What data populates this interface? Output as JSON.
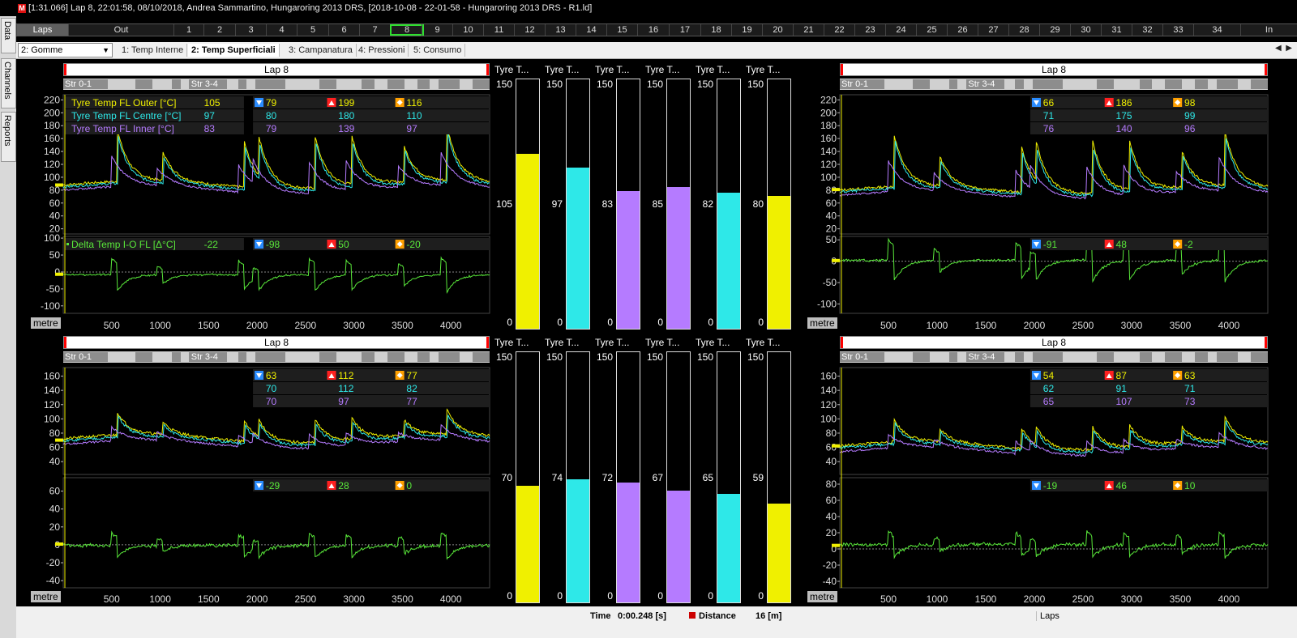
{
  "window_title": "[1:31.066] Lap 8, 22:01:58, 08/10/2018, Andrea Sammartino, Hungaroring 2013 DRS,  [2018-10-08 - 22-01-58 - Hungaroring 2013 DRS - R1.ld]",
  "side_tabs": [
    "Data",
    "Channels",
    "Reports"
  ],
  "laps_bar": {
    "items": [
      "Laps",
      "Out",
      "1",
      "2",
      "3",
      "4",
      "5",
      "6",
      "7",
      "8",
      "9",
      "10",
      "11",
      "12",
      "13",
      "14",
      "15",
      "16",
      "17",
      "18",
      "19",
      "20",
      "21",
      "22",
      "23",
      "24",
      "25",
      "26",
      "27",
      "28",
      "29",
      "30",
      "31",
      "32",
      "33",
      "34",
      "In"
    ],
    "selected": "8"
  },
  "workbook_select": "2: Gomme",
  "tabs": [
    "1: Temp Interne",
    "2: Temp Superficiali",
    "3: Campanatura",
    "4: Pressioni",
    "5: Consumo"
  ],
  "active_tab": "2: Temp Superficiali",
  "colors": {
    "yellow": "#f0f000",
    "cyan": "#2ee8e8",
    "purple": "#b57bff",
    "green": "#59e83a",
    "red": "#ff2020",
    "blue": "#2a8cff",
    "orange": "#ffa000"
  },
  "icons": [
    "min-triangle-icon",
    "max-triangle-icon",
    "avg-diamond-icon"
  ],
  "plots": [
    {
      "id": "tl",
      "lap": "Lap 8",
      "sectors": [
        "Str 0-1",
        "Str 3-4"
      ],
      "x_unit": "metre",
      "x_ticks": [
        "500",
        "1000",
        "1500",
        "2000",
        "2500",
        "3000",
        "3500",
        "4000"
      ],
      "upper": {
        "y_ticks": [
          "220",
          "200",
          "180",
          "160",
          "140",
          "120",
          "100",
          "80",
          "60",
          "40",
          "20"
        ],
        "legend": [
          {
            "name": "Tyre Temp FL Outer [°C]",
            "value": "105",
            "min": "79",
            "max": "199",
            "avg": "116"
          },
          {
            "name": "Tyre Temp FL Centre [°C]",
            "value": "97",
            "min": "80",
            "max": "180",
            "avg": "110"
          },
          {
            "name": "Tyre Temp FL Inner [°C]",
            "value": "83",
            "min": "79",
            "max": "139",
            "avg": "97"
          }
        ]
      },
      "lower": {
        "y_ticks": [
          "100",
          "50",
          "0",
          "-50",
          "-100"
        ],
        "legend": [
          {
            "name": "Delta Temp I-O FL [Δ°C]",
            "value": "-22",
            "min": "-98",
            "max": "50",
            "avg": "-20"
          }
        ]
      }
    },
    {
      "id": "tr",
      "lap": "Lap 8",
      "sectors": [
        "Str 0-1",
        "Str 3-4"
      ],
      "x_unit": "metre",
      "x_ticks": [
        "500",
        "1000",
        "1500",
        "2000",
        "2500",
        "3000",
        "3500",
        "4000"
      ],
      "upper": {
        "y_ticks": [
          "220",
          "200",
          "180",
          "160",
          "140",
          "120",
          "100",
          "80",
          "60",
          "40",
          "20"
        ],
        "legend": [
          {
            "name": "",
            "value": "",
            "min": "66",
            "max": "186",
            "avg": "98"
          },
          {
            "name": "",
            "value": "",
            "min": "71",
            "max": "175",
            "avg": "99"
          },
          {
            "name": "",
            "value": "",
            "min": "76",
            "max": "140",
            "avg": "96"
          }
        ]
      },
      "lower": {
        "y_ticks": [
          "50",
          "0",
          "-50",
          "-100"
        ],
        "legend": [
          {
            "name": "",
            "value": "",
            "min": "-91",
            "max": "48",
            "avg": "-2"
          }
        ]
      }
    },
    {
      "id": "bl",
      "lap": "Lap 8",
      "sectors": [
        "Str 0-1",
        "Str 3-4"
      ],
      "x_unit": "metre",
      "x_ticks": [
        "500",
        "1000",
        "1500",
        "2000",
        "2500",
        "3000",
        "3500",
        "4000"
      ],
      "upper": {
        "y_ticks": [
          "160",
          "140",
          "120",
          "100",
          "80",
          "60",
          "40"
        ],
        "legend": [
          {
            "name": "",
            "value": "",
            "min": "63",
            "max": "112",
            "avg": "77"
          },
          {
            "name": "",
            "value": "",
            "min": "70",
            "max": "112",
            "avg": "82"
          },
          {
            "name": "",
            "value": "",
            "min": "70",
            "max": "97",
            "avg": "77"
          }
        ]
      },
      "lower": {
        "y_ticks": [
          "60",
          "40",
          "20",
          "0",
          "-20",
          "-40"
        ],
        "legend": [
          {
            "name": "",
            "value": "",
            "min": "-29",
            "max": "28",
            "avg": "0"
          }
        ]
      }
    },
    {
      "id": "br",
      "lap": "Lap 8",
      "sectors": [
        "Str 0-1",
        "Str 3-4"
      ],
      "x_unit": "metre",
      "x_ticks": [
        "500",
        "1000",
        "1500",
        "2000",
        "2500",
        "3000",
        "3500",
        "4000"
      ],
      "upper": {
        "y_ticks": [
          "160",
          "140",
          "120",
          "100",
          "80",
          "60",
          "40"
        ],
        "legend": [
          {
            "name": "",
            "value": "",
            "min": "54",
            "max": "87",
            "avg": "63"
          },
          {
            "name": "",
            "value": "",
            "min": "62",
            "max": "91",
            "avg": "71"
          },
          {
            "name": "",
            "value": "",
            "min": "65",
            "max": "107",
            "avg": "73"
          }
        ]
      },
      "lower": {
        "y_ticks": [
          "80",
          "60",
          "40",
          "20",
          "0",
          "-20",
          "-40"
        ],
        "legend": [
          {
            "name": "",
            "value": "",
            "min": "-19",
            "max": "46",
            "avg": "10"
          }
        ]
      }
    }
  ],
  "bars": {
    "title": "Tyre T...",
    "max_label": "150",
    "min_label": "0",
    "max": 150,
    "top": [
      {
        "value": 105,
        "label": "105",
        "color": "#f0f000"
      },
      {
        "value": 97,
        "label": "97",
        "color": "#2ee8e8"
      },
      {
        "value": 83,
        "label": "83",
        "color": "#b57bff"
      },
      {
        "value": 85,
        "label": "85",
        "color": "#b57bff"
      },
      {
        "value": 82,
        "label": "82",
        "color": "#2ee8e8"
      },
      {
        "value": 80,
        "label": "80",
        "color": "#f0f000"
      }
    ],
    "bottom": [
      {
        "value": 70,
        "label": "70",
        "color": "#f0f000"
      },
      {
        "value": 74,
        "label": "74",
        "color": "#2ee8e8"
      },
      {
        "value": 72,
        "label": "72",
        "color": "#b57bff"
      },
      {
        "value": 67,
        "label": "67",
        "color": "#b57bff"
      },
      {
        "value": 65,
        "label": "65",
        "color": "#2ee8e8"
      },
      {
        "value": 59,
        "label": "59",
        "color": "#f0f000"
      }
    ]
  },
  "status": {
    "time_label": "Time",
    "time_value": "0:00.248 [s]",
    "distance_label": "Distance",
    "distance_value": "16 [m]",
    "mode": "Laps"
  }
}
